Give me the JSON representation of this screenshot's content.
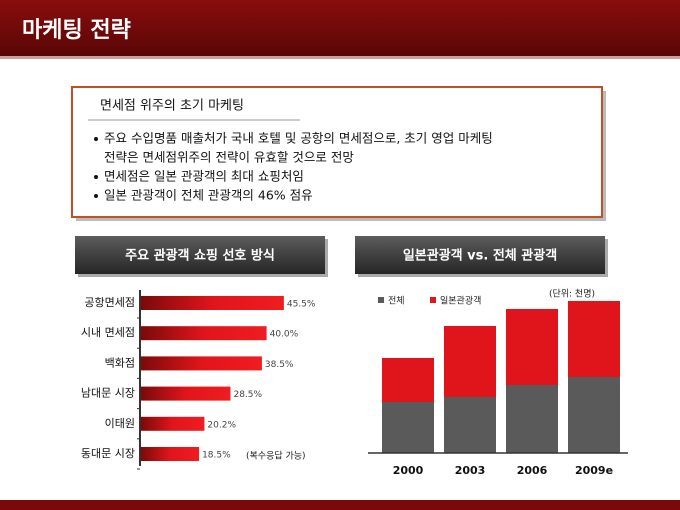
{
  "title": "마케팅 전략",
  "box": {
    "heading": "면세점 위주의 초기 마케팅",
    "bullets": [
      [
        "주요 수입명품 매출처가 국내 호텔 및 공항의 면세점으로,  초기 영업 마케팅",
        "전략은 면세점위주의 전략이 유효할 것으로 전망"
      ],
      [
        "면세점은 일본 관광객의 최대 쇼핑처임"
      ],
      [
        "일본 관광객이 전체 관광객의 46% 점유"
      ]
    ]
  },
  "chart_data": [
    {
      "type": "hbar",
      "title": "주요 관광객 쇼핑 선호 방식",
      "note": "(복수응답 가능)",
      "color": "#e0151b",
      "categories": [
        "공항면세점",
        "시내 면세점",
        "백화점",
        "남대문 시장",
        "이태원",
        "동대문 시장"
      ],
      "values": [
        45.5,
        40.0,
        38.5,
        28.5,
        20.2,
        18.5
      ],
      "value_labels": [
        "45.5%",
        "40.0%",
        "38.5%",
        "28.5%",
        "20.2%",
        "18.5%"
      ]
    },
    {
      "type": "stacked",
      "title": "일본관광객 vs. 전체 관광객",
      "unit": "(단위: 천명)",
      "categories": [
        "2000",
        "2003",
        "2006",
        "2009e"
      ],
      "series": [
        {
          "name": "전체",
          "color": "#5a5a5a",
          "values": [
            510,
            560,
            680,
            760
          ]
        },
        {
          "name": "일본관광객",
          "color": "#e0151b",
          "values": [
            440,
            710,
            760,
            760
          ]
        }
      ]
    }
  ]
}
